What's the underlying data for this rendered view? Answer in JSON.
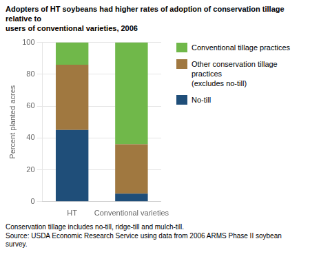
{
  "chart_data": {
    "type": "bar",
    "stacked": true,
    "title": "Adopters of HT soybeans had higher rates of adoption of conservation tillage relative to\nusers of conventional varieties, 2006",
    "ylabel": "Percent planted acres",
    "categories": [
      "HT",
      "Conventional varieties"
    ],
    "series": [
      {
        "name": "No-till",
        "color": "#1f4e79",
        "values": [
          45,
          5
        ]
      },
      {
        "name": "Other conservation tillage practices\n(excludes no-till)",
        "color": "#a07840",
        "values": [
          41,
          31
        ]
      },
      {
        "name": "Conventional tillage practices",
        "color": "#70b84a",
        "values": [
          14,
          64
        ]
      }
    ],
    "ylim": [
      0,
      100
    ],
    "yticks": [
      0,
      20,
      40,
      60,
      80,
      100
    ],
    "grid": true,
    "legend": "right",
    "annotations": [
      "Conservation tillage includes no-till, ridge-till and mulch-till.",
      "Source: USDA Economic Research Service using data from 2006 ARMS Phase II soybean",
      "survey."
    ]
  }
}
